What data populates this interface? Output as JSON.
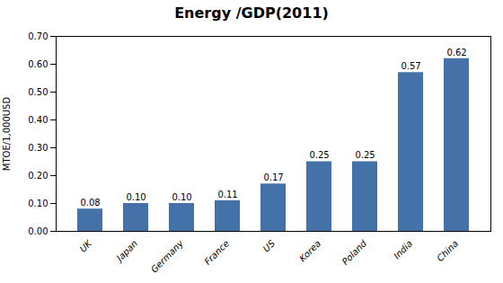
{
  "chart_data": {
    "type": "bar",
    "title": "Energy /GDP(2011)",
    "ylabel": "MTOE/1,000USD",
    "categories": [
      "UK",
      "Japan",
      "Germany",
      "France",
      "US",
      "Korea",
      "Poland",
      "India",
      "China"
    ],
    "values": [
      0.08,
      0.1,
      0.1,
      0.11,
      0.17,
      0.25,
      0.25,
      0.57,
      0.62
    ],
    "value_labels": [
      "0.08",
      "0.10",
      "0.10",
      "0.11",
      "0.17",
      "0.25",
      "0.25",
      "0.57",
      "0.62"
    ],
    "data_labels": true,
    "color": "#4472a8",
    "ylim": [
      0.0,
      0.7
    ],
    "yticks": [
      {
        "value": 0.0,
        "label": "0.00"
      },
      {
        "value": 0.1,
        "label": "0.10"
      },
      {
        "value": 0.2,
        "label": "0.20"
      },
      {
        "value": 0.3,
        "label": "0.30"
      },
      {
        "value": 0.4,
        "label": "0.40"
      },
      {
        "value": 0.5,
        "label": "0.50"
      },
      {
        "value": 0.6,
        "label": "0.60"
      },
      {
        "value": 0.7,
        "label": "0.70"
      }
    ],
    "grid": false
  }
}
